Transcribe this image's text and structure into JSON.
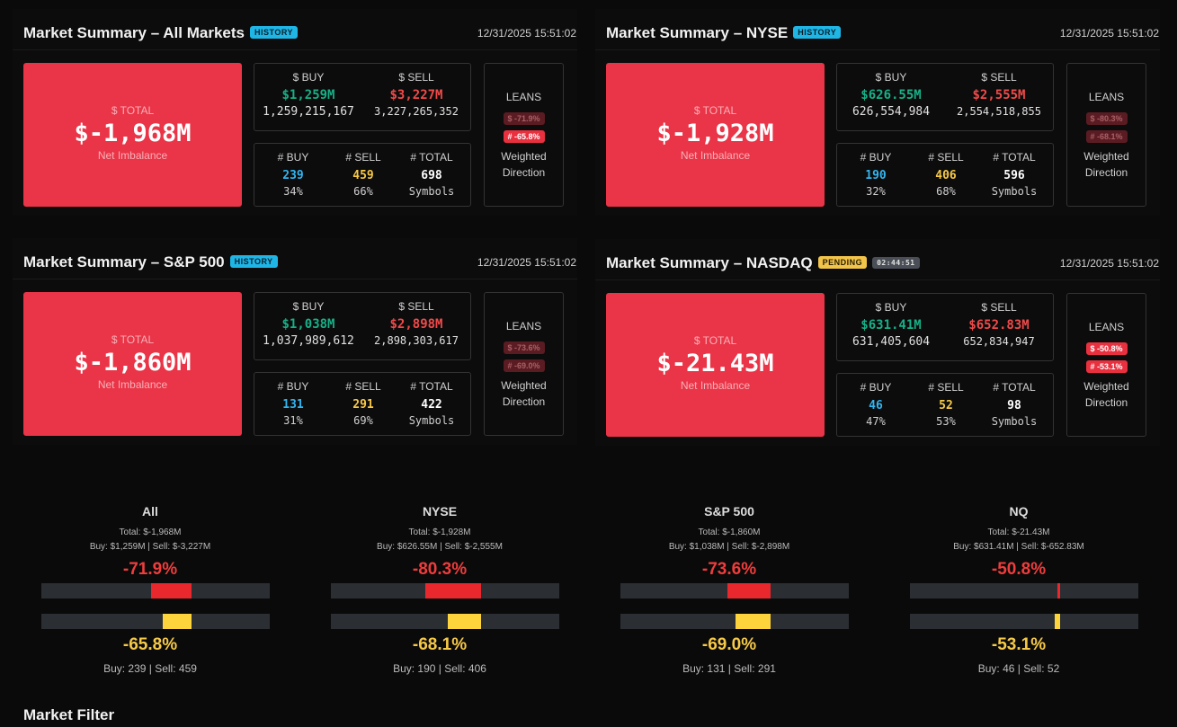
{
  "panels": [
    {
      "title": "Market Summary – All Markets",
      "badge": "HISTORY",
      "time": "12/31/2025 15:51:02",
      "total_label": "$ TOTAL",
      "total_value": "$-1,968M",
      "total_sub": "Net Imbalance",
      "buy_label": "$ BUY",
      "sell_label": "$ SELL",
      "buy_short": "$1,259M",
      "sell_short": "$3,227M",
      "buy_raw": "1,259,215,167",
      "sell_raw": "3,227,265,352",
      "count_buy_label": "# BUY",
      "count_sell_label": "# SELL",
      "count_total_label": "# TOTAL",
      "count_buy": "239",
      "count_sell": "459",
      "count_total": "698",
      "buy_pct": "34%",
      "sell_pct": "66%",
      "symbols_label": "Symbols",
      "leans_label": "LEANS",
      "lean_money": "$ -71.9%",
      "lean_count": "# -65.8%",
      "weighted_1": "Weighted",
      "weighted_2": "Direction"
    },
    {
      "title": "Market Summary – NYSE",
      "badge": "HISTORY",
      "time": "12/31/2025 15:51:02",
      "total_label": "$ TOTAL",
      "total_value": "$-1,928M",
      "total_sub": "Net Imbalance",
      "buy_label": "$ BUY",
      "sell_label": "$ SELL",
      "buy_short": "$626.55M",
      "sell_short": "$2,555M",
      "buy_raw": "626,554,984",
      "sell_raw": "2,554,518,855",
      "count_buy_label": "# BUY",
      "count_sell_label": "# SELL",
      "count_total_label": "# TOTAL",
      "count_buy": "190",
      "count_sell": "406",
      "count_total": "596",
      "buy_pct": "32%",
      "sell_pct": "68%",
      "symbols_label": "Symbols",
      "leans_label": "LEANS",
      "lean_money": "$ -80.3%",
      "lean_count": "# -68.1%",
      "weighted_1": "Weighted",
      "weighted_2": "Direction"
    },
    {
      "title": "Market Summary – S&P 500",
      "badge": "HISTORY",
      "time": "12/31/2025 15:51:02",
      "total_label": "$ TOTAL",
      "total_value": "$-1,860M",
      "total_sub": "Net Imbalance",
      "buy_label": "$ BUY",
      "sell_label": "$ SELL",
      "buy_short": "$1,038M",
      "sell_short": "$2,898M",
      "buy_raw": "1,037,989,612",
      "sell_raw": "2,898,303,617",
      "count_buy_label": "# BUY",
      "count_sell_label": "# SELL",
      "count_total_label": "# TOTAL",
      "count_buy": "131",
      "count_sell": "291",
      "count_total": "422",
      "buy_pct": "31%",
      "sell_pct": "69%",
      "symbols_label": "Symbols",
      "leans_label": "LEANS",
      "lean_money": "$ -73.6%",
      "lean_count": "# -69.0%",
      "weighted_1": "Weighted",
      "weighted_2": "Direction"
    },
    {
      "title": "Market Summary – NASDAQ",
      "badge": "PENDING",
      "timer": "02:44:51",
      "time": "12/31/2025 15:51:02",
      "total_label": "$ TOTAL",
      "total_value": "$-21.43M",
      "total_sub": "Net Imbalance",
      "buy_label": "$ BUY",
      "sell_label": "$ SELL",
      "buy_short": "$631.41M",
      "sell_short": "$652.83M",
      "buy_raw": "631,405,604",
      "sell_raw": "652,834,947",
      "count_buy_label": "# BUY",
      "count_sell_label": "# SELL",
      "count_total_label": "# TOTAL",
      "count_buy": "46",
      "count_sell": "52",
      "count_total": "98",
      "buy_pct": "47%",
      "sell_pct": "53%",
      "symbols_label": "Symbols",
      "leans_label": "LEANS",
      "lean_money": "$ -50.8%",
      "lean_count": "# -53.1%",
      "weighted_1": "Weighted",
      "weighted_2": "Direction"
    }
  ],
  "stats": [
    {
      "name": "All",
      "total": "Total: $-1,968M",
      "buysell": "Buy: $1,259M | Sell: $-3,227M",
      "money_pct": "-71.9%",
      "count_pct": "-65.8%",
      "money_value": -71.9,
      "count_value": -65.8,
      "counts": "Buy: 239 | Sell: 459"
    },
    {
      "name": "NYSE",
      "total": "Total: $-1,928M",
      "buysell": "Buy: $626.55M | Sell: $-2,555M",
      "money_pct": "-80.3%",
      "count_pct": "-68.1%",
      "money_value": -80.3,
      "count_value": -68.1,
      "counts": "Buy: 190 | Sell: 406"
    },
    {
      "name": "S&P 500",
      "total": "Total: $-1,860M",
      "buysell": "Buy: $1,038M | Sell: $-2,898M",
      "money_pct": "-73.6%",
      "count_pct": "-69.0%",
      "money_value": -73.6,
      "count_value": -69.0,
      "counts": "Buy: 131 | Sell: 291"
    },
    {
      "name": "NQ",
      "total": "Total: $-21.43M",
      "buysell": "Buy: $631.41M | Sell: $-652.83M",
      "money_pct": "-50.8%",
      "count_pct": "-53.1%",
      "money_value": -50.8,
      "count_value": -53.1,
      "counts": "Buy: 46 | Sell: 52"
    }
  ],
  "filter_title": "Market Filter",
  "colors": {
    "total_box": "#ea3447",
    "buy_green": "#17b087",
    "sell_red": "#f04a4a",
    "count_buy_blue": "#33b5f0",
    "count_sell_yellow": "#f7c948",
    "bar_red": "#e8282d",
    "bar_yellow": "#fdd43c"
  }
}
